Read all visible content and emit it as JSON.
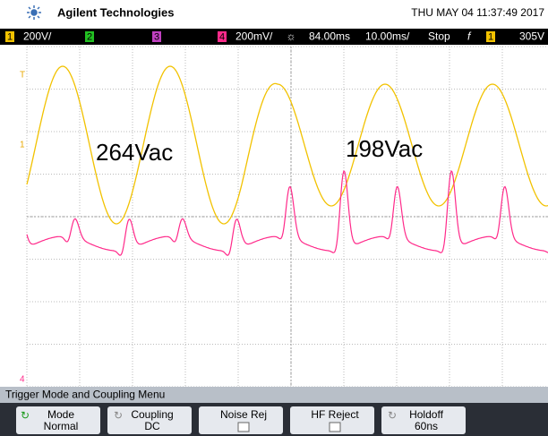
{
  "header": {
    "brand": "Agilent Technologies",
    "datetime": "THU MAY 04 11:37:49 2017"
  },
  "status_bar": {
    "ch1_num": "1",
    "ch1_scale": "200V/",
    "ch2_num": "2",
    "ch3_num": "3",
    "ch4_num": "4",
    "ch4_scale": "200mV/",
    "delay": "84.00ms",
    "timebase": "10.00ms/",
    "run_state": "Stop",
    "trigger_slope": "f",
    "trigger_source": "1",
    "trigger_level": "305V"
  },
  "markers": {
    "trigger": "T",
    "ch1": "1",
    "ch4": "4"
  },
  "annotations": [
    "264Vac",
    "198Vac"
  ],
  "menu": {
    "title": "Trigger Mode and Coupling Menu",
    "softkeys": [
      {
        "label": "Mode",
        "value": "Normal"
      },
      {
        "label": "Coupling",
        "value": "DC"
      },
      {
        "label": "Noise Rej"
      },
      {
        "label": "HF Reject"
      },
      {
        "label": "Holdoff",
        "value": "60ns"
      }
    ]
  }
}
